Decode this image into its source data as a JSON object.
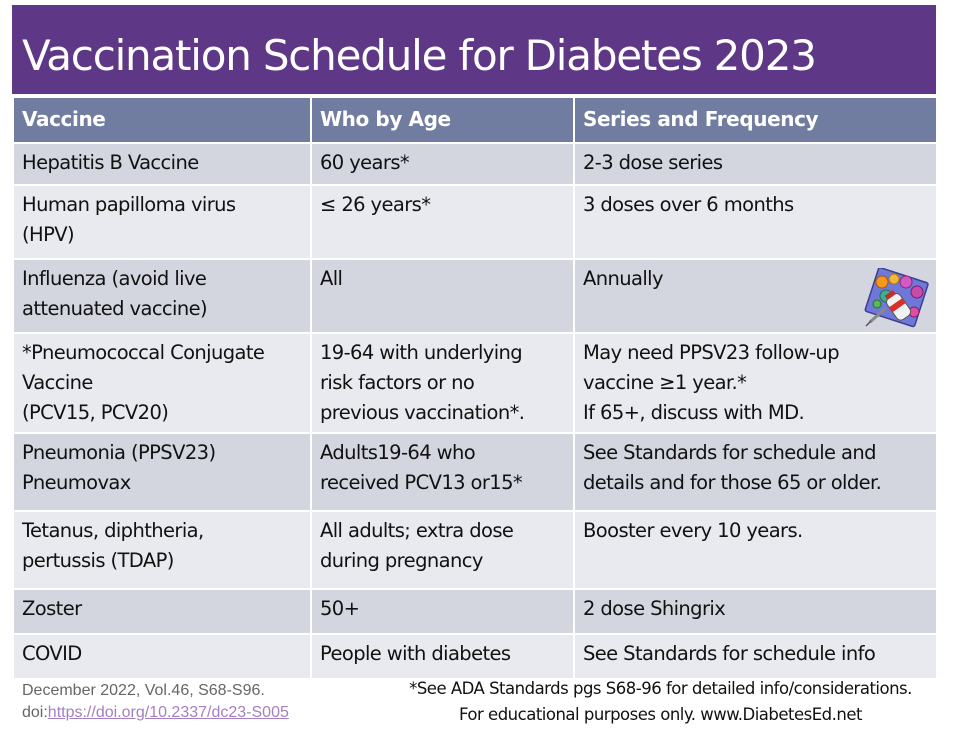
{
  "title": "Vaccination Schedule for Diabetes 2023",
  "colors": {
    "title_bg": "#5f3787",
    "header_bg": "#707ca0",
    "row_dark": "#d3d6df",
    "row_light": "#e9eaef",
    "link": "#a57fc0"
  },
  "table": {
    "headers": [
      "Vaccine",
      "Who by Age",
      "Series and Frequency"
    ],
    "rows": [
      {
        "vaccine": [
          "Hepatitis B Vaccine"
        ],
        "who": [
          "60 years*"
        ],
        "series": [
          "2-3 dose series"
        ]
      },
      {
        "vaccine": [
          "Human papilloma virus",
          "(HPV)"
        ],
        "who": [
          "≤ 26 years*"
        ],
        "series": [
          "3 doses over 6 months"
        ]
      },
      {
        "vaccine": [
          "Influenza (avoid live",
          "attenuated vaccine)"
        ],
        "who": [
          "All"
        ],
        "series": [
          "Annually"
        ],
        "icon": "vaccine-vial-virus-clipart"
      },
      {
        "vaccine": [
          "*Pneumococcal Conjugate",
          "Vaccine",
          "(PCV15, PCV20)"
        ],
        "who": [
          "19-64 with underlying",
          "risk factors or no",
          "previous vaccination*."
        ],
        "series": [
          "May need PPSV23 follow-up",
          "vaccine ≥1 year.*",
          "If 65+, discuss with MD."
        ]
      },
      {
        "vaccine": [
          "Pneumonia (PPSV23)",
          "Pneumovax"
        ],
        "who": [
          "Adults19-64 who",
          "received PCV13 or15*"
        ],
        "series": [
          "See Standards for schedule and",
          "details and for those 65 or older."
        ]
      },
      {
        "vaccine": [
          "Tetanus, diphtheria,",
          "pertussis (TDAP)"
        ],
        "who": [
          "All adults; extra dose",
          "during pregnancy"
        ],
        "series": [
          "Booster every 10 years."
        ]
      },
      {
        "vaccine": [
          "Zoster"
        ],
        "who": [
          "50+"
        ],
        "series": [
          "2 dose Shingrix"
        ]
      },
      {
        "vaccine": [
          "COVID"
        ],
        "who": [
          "People with diabetes"
        ],
        "series": [
          "See Standards for schedule info"
        ]
      }
    ]
  },
  "footer": {
    "citation": "December 2022, Vol.46, S68-S96.",
    "doi_prefix": "doi:",
    "doi_link": "https://doi.org/10.2337/dc23-S005",
    "note": "*See ADA Standards pgs S68-96 for detailed info/considerations.",
    "disclaimer": "For educational purposes only.  www.DiabetesEd.net"
  }
}
